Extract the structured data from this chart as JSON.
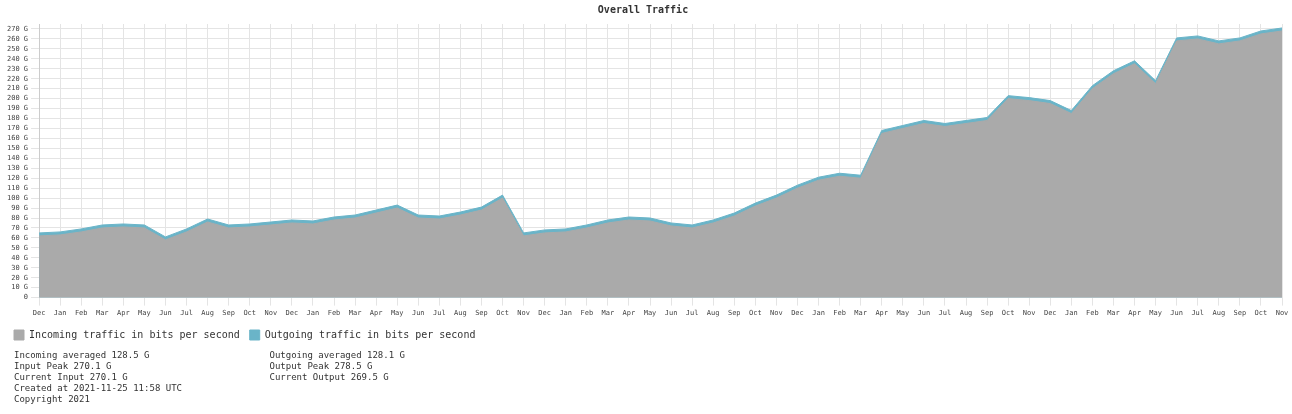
{
  "chart_data": {
    "type": "area",
    "title": "Overall Traffic",
    "categories": [
      "Dec",
      "Jan",
      "Feb",
      "Mar",
      "Apr",
      "May",
      "Jun",
      "Jul",
      "Aug",
      "Sep",
      "Oct",
      "Nov",
      "Dec",
      "Jan",
      "Feb",
      "Mar",
      "Apr",
      "May",
      "Jun",
      "Jul",
      "Aug",
      "Sep",
      "Oct",
      "Nov",
      "Dec",
      "Jan",
      "Feb",
      "Mar",
      "Apr",
      "May",
      "Jun",
      "Jul",
      "Aug",
      "Sep",
      "Oct",
      "Nov",
      "Dec",
      "Jan",
      "Feb",
      "Mar",
      "Apr",
      "May",
      "Jun",
      "Jul",
      "Aug",
      "Sep",
      "Oct",
      "Nov",
      "Dec",
      "Jan",
      "Feb",
      "Mar",
      "Apr",
      "May",
      "Jun",
      "Jul",
      "Aug",
      "Sep",
      "Oct",
      "Nov"
    ],
    "series": [
      {
        "name": "Incoming traffic in bits per second",
        "color": "#aaaaaa",
        "values": [
          62,
          63,
          66,
          70,
          71,
          70,
          58,
          66,
          76,
          70,
          71,
          73,
          75,
          74,
          78,
          80,
          85,
          90,
          80,
          79,
          83,
          88,
          100,
          62,
          65,
          66,
          70,
          75,
          78,
          77,
          72,
          70,
          75,
          82,
          92,
          100,
          110,
          118,
          122,
          120,
          165,
          170,
          175,
          172,
          175,
          178,
          200,
          198,
          195,
          185,
          210,
          225,
          235,
          215,
          258,
          260,
          255,
          258,
          265,
          268
        ]
      },
      {
        "name": "Outgoing traffic in bits per second",
        "color": "#6ab4c8",
        "values": [
          65,
          66,
          69,
          73,
          74,
          73,
          61,
          69,
          79,
          73,
          74,
          76,
          78,
          77,
          81,
          83,
          88,
          93,
          83,
          82,
          86,
          91,
          103,
          65,
          68,
          69,
          73,
          78,
          81,
          80,
          75,
          73,
          78,
          85,
          95,
          103,
          113,
          121,
          125,
          123,
          168,
          173,
          178,
          175,
          178,
          181,
          203,
          201,
          198,
          188,
          213,
          228,
          238,
          218,
          261,
          263,
          258,
          261,
          268,
          271
        ]
      }
    ],
    "ylim": [
      0,
      275
    ],
    "yticks": [
      {
        "value": 0,
        "label": "0"
      },
      {
        "value": 10,
        "label": "10 G"
      },
      {
        "value": 20,
        "label": "20 G"
      },
      {
        "value": 30,
        "label": "30 G"
      },
      {
        "value": 40,
        "label": "40 G"
      },
      {
        "value": 50,
        "label": "50 G"
      },
      {
        "value": 60,
        "label": "60 G"
      },
      {
        "value": 70,
        "label": "70 G"
      },
      {
        "value": 80,
        "label": "80 G"
      },
      {
        "value": 90,
        "label": "90 G"
      },
      {
        "value": 100,
        "label": "100 G"
      },
      {
        "value": 110,
        "label": "110 G"
      },
      {
        "value": 120,
        "label": "120 G"
      },
      {
        "value": 130,
        "label": "130 G"
      },
      {
        "value": 140,
        "label": "140 G"
      },
      {
        "value": 150,
        "label": "150 G"
      },
      {
        "value": 160,
        "label": "160 G"
      },
      {
        "value": 170,
        "label": "170 G"
      },
      {
        "value": 180,
        "label": "180 G"
      },
      {
        "value": 190,
        "label": "190 G"
      },
      {
        "value": 200,
        "label": "200 G"
      },
      {
        "value": 210,
        "label": "210 G"
      },
      {
        "value": 220,
        "label": "220 G"
      },
      {
        "value": 230,
        "label": "230 G"
      },
      {
        "value": 240,
        "label": "240 G"
      },
      {
        "value": 250,
        "label": "250 G"
      },
      {
        "value": 260,
        "label": "260 G"
      },
      {
        "value": 270,
        "label": "270 G"
      }
    ],
    "grid": true,
    "legend": "bottom",
    "annotations": [
      "Incoming averaged 128.5 G",
      "Input Peak 270.1 G",
      "Current Input 270.1 G",
      "Outgoing averaged 128.1 G",
      "Output Peak 278.5 G",
      "Current Output 269.5 G",
      "Created at 2021-11-25 11:58 UTC",
      "Copyright 2021"
    ]
  }
}
